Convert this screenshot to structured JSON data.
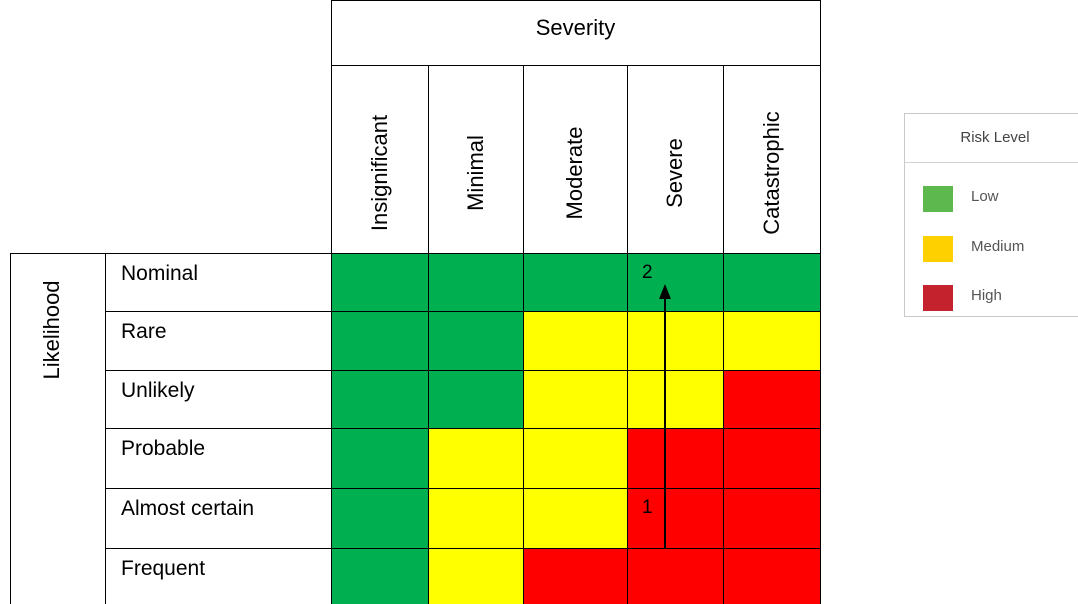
{
  "severity_title": "Severity",
  "severity_levels": [
    "Insignificant",
    "Minimal",
    "Moderate",
    "Severe",
    "Catastrophic"
  ],
  "likelihood_title": "Likelihood",
  "likelihood_levels": [
    "Nominal",
    "Rare",
    "Unlikely",
    "Probable",
    "Almost certain",
    "Frequent"
  ],
  "colors": {
    "low": "#00B050",
    "medium": "#FFFF00",
    "high": "#FF0000"
  },
  "matrix": [
    [
      "low",
      "low",
      "low",
      "low",
      "low"
    ],
    [
      "low",
      "low",
      "medium",
      "medium",
      "medium"
    ],
    [
      "low",
      "low",
      "medium",
      "medium",
      "high"
    ],
    [
      "low",
      "medium",
      "medium",
      "high",
      "high"
    ],
    [
      "low",
      "medium",
      "medium",
      "high",
      "high"
    ],
    [
      "low",
      "medium",
      "high",
      "high",
      "high"
    ]
  ],
  "markers": [
    {
      "label": "1",
      "row": 4,
      "col": 3
    },
    {
      "label": "2",
      "row": 0,
      "col": 3
    }
  ],
  "legend": {
    "title": "Risk Level",
    "items": [
      {
        "label": "Low",
        "color": "#5DB84E"
      },
      {
        "label": "Medium",
        "color": "#FFD000"
      },
      {
        "label": "High",
        "color": "#C4232E"
      }
    ]
  }
}
